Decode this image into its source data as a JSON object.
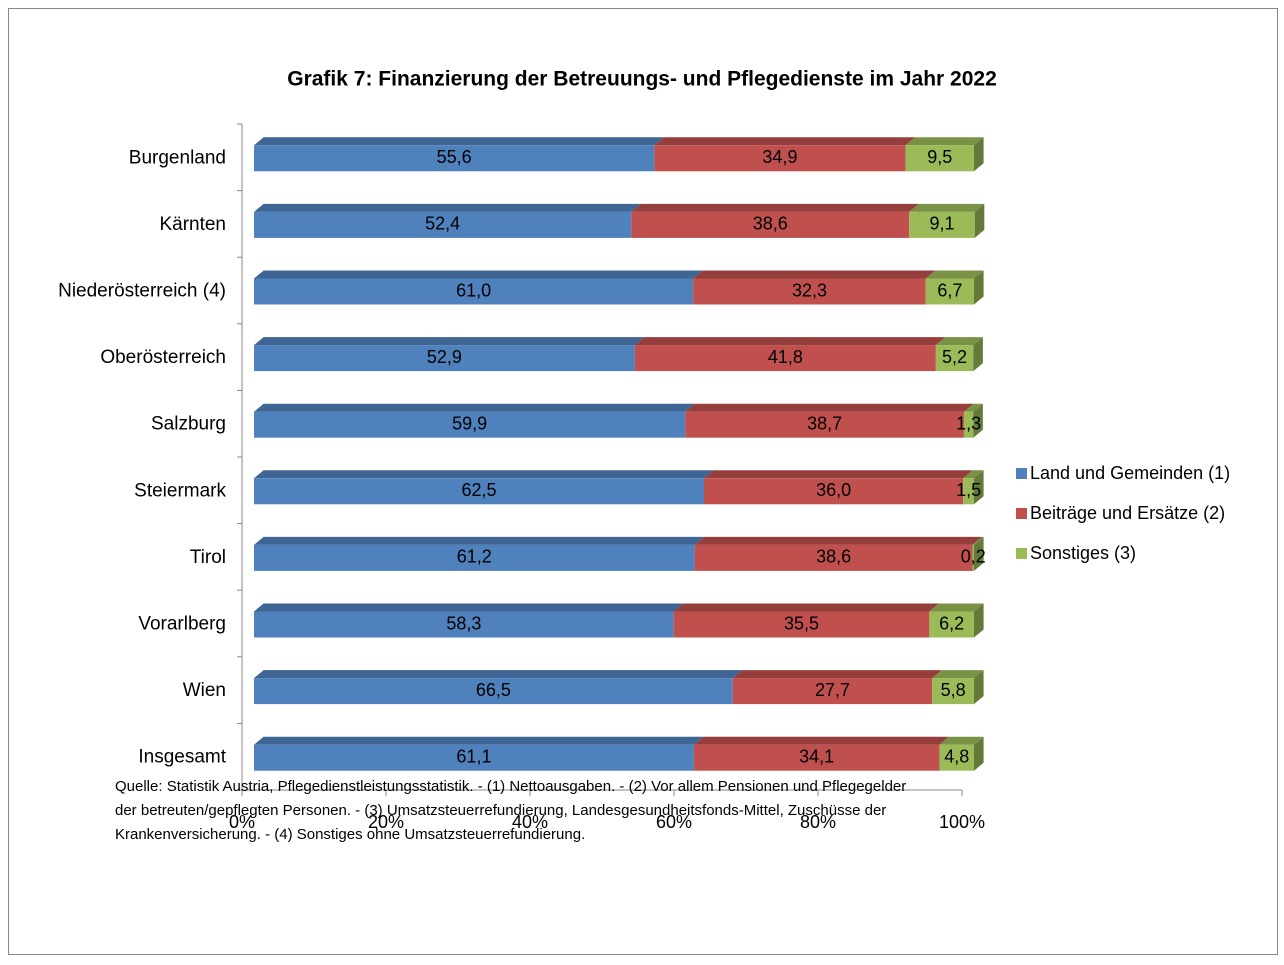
{
  "chart_data": {
    "type": "stacked-bar-horizontal",
    "title": "Grafik 7: Finanzierung der Betreuungs- und Pflegedienste im Jahr 2022",
    "categories": [
      "Burgenland",
      "Kärnten",
      "Niederösterreich (4)",
      "Oberösterreich",
      "Salzburg",
      "Steiermark",
      "Tirol",
      "Vorarlberg",
      "Wien",
      "Insgesamt"
    ],
    "series": [
      {
        "name": "Land und Gemeinden (1)",
        "color": "#4f81bd",
        "values": [
          55.6,
          52.4,
          61.0,
          52.9,
          59.9,
          62.5,
          61.2,
          58.3,
          66.5,
          61.1
        ],
        "value_labels": [
          "55,6",
          "52,4",
          "61,0",
          "52,9",
          "59,9",
          "62,5",
          "61,2",
          "58,3",
          "66,5",
          "61,1"
        ]
      },
      {
        "name": "Beiträge und Ersätze (2)",
        "color": "#c0504d",
        "values": [
          34.9,
          38.6,
          32.3,
          41.8,
          38.7,
          36.0,
          38.6,
          35.5,
          27.7,
          34.1
        ],
        "value_labels": [
          "34,9",
          "38,6",
          "32,3",
          "41,8",
          "38,7",
          "36,0",
          "38,6",
          "35,5",
          "27,7",
          "34,1"
        ]
      },
      {
        "name": "Sonstiges (3)",
        "color": "#9bbb59",
        "values": [
          9.5,
          9.1,
          6.7,
          5.2,
          1.3,
          1.5,
          0.2,
          6.2,
          5.8,
          4.8
        ],
        "value_labels": [
          "9,5",
          "9,1",
          "6,7",
          "5,2",
          "1,3",
          "1,5",
          "0,2",
          "6,2",
          "5,8",
          "4,8"
        ]
      }
    ],
    "xlim": [
      0,
      100
    ],
    "xticks": [
      {
        "value": 0,
        "label": "0%"
      },
      {
        "value": 20,
        "label": "20%"
      },
      {
        "value": 40,
        "label": "40%"
      },
      {
        "value": 60,
        "label": "60%"
      },
      {
        "value": 80,
        "label": "80%"
      },
      {
        "value": 100,
        "label": "100%"
      }
    ],
    "legend": "right",
    "note": [
      "Quelle: Statistik Austria, Pflegedienstleistungsstatistik. - (1) Nettoausgaben. - (2) Vor allem Pensionen und Pflegegelder",
      "der betreuten/gepflegten Personen. - (3) Umsatzsteuerrefundierung, Landesgesundheitsfonds-Mittel, Zuschüsse der",
      "Krankenversicherung. - (4) Sonstiges ohne Umsatzsteuerrefundierung."
    ]
  }
}
